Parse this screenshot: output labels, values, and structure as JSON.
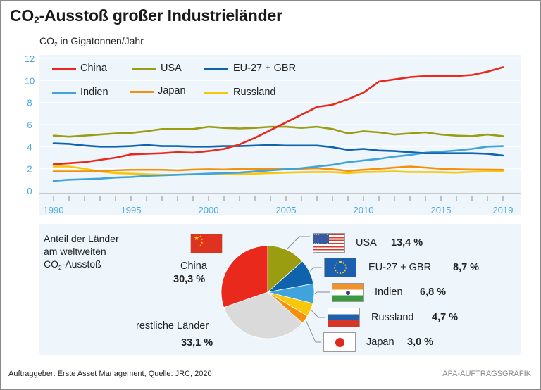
{
  "title": {
    "main": "CO",
    "sub": "2",
    "rest": "-Ausstoß großer Industrieländer"
  },
  "unit_label": {
    "pre": "CO",
    "sub": "2",
    "rest": " in Gigatonnen/Jahr"
  },
  "colors": {
    "China": "#e8291c",
    "USA": "#9a9d10",
    "EU-27 + GBR": "#0f63ad",
    "Indien": "#3fa3dd",
    "Japan": "#f4900e",
    "Russland": "#f7c80a",
    "restliche Länder": "#dadada",
    "axis_text": "#4aa6dc",
    "panel_bg": "#eef6fc"
  },
  "chart_data": [
    {
      "type": "line",
      "title": "CO2-Ausstoß großer Industrieländer",
      "ylabel": "CO2 in Gigatonnen/Jahr",
      "xlabel": "",
      "ylim": [
        0,
        12
      ],
      "yticks": [
        0,
        2,
        4,
        6,
        8,
        10,
        12
      ],
      "xlim": [
        1990,
        2019
      ],
      "xtick_labels": [
        "1990",
        "1995",
        "2000",
        "2005",
        "2010",
        "2015",
        "2019"
      ],
      "grid": true,
      "legend_position": "top-left",
      "x": [
        1990,
        1991,
        1992,
        1993,
        1994,
        1995,
        1996,
        1997,
        1998,
        1999,
        2000,
        2001,
        2002,
        2003,
        2004,
        2005,
        2006,
        2007,
        2008,
        2009,
        2010,
        2011,
        2012,
        2013,
        2014,
        2015,
        2016,
        2017,
        2018,
        2019
      ],
      "series": [
        {
          "name": "China",
          "values": [
            2.4,
            2.5,
            2.6,
            2.8,
            3.0,
            3.3,
            3.35,
            3.4,
            3.5,
            3.45,
            3.6,
            3.8,
            4.2,
            4.8,
            5.5,
            6.2,
            6.9,
            7.6,
            7.8,
            8.3,
            8.9,
            9.9,
            10.1,
            10.3,
            10.4,
            10.4,
            10.4,
            10.5,
            10.8,
            11.2
          ]
        },
        {
          "name": "USA",
          "values": [
            5.0,
            4.9,
            5.0,
            5.1,
            5.2,
            5.25,
            5.4,
            5.6,
            5.6,
            5.6,
            5.8,
            5.7,
            5.65,
            5.7,
            5.8,
            5.8,
            5.7,
            5.8,
            5.6,
            5.2,
            5.4,
            5.3,
            5.1,
            5.2,
            5.3,
            5.1,
            5.0,
            4.95,
            5.1,
            4.95
          ]
        },
        {
          "name": "EU-27 + GBR",
          "values": [
            4.3,
            4.25,
            4.1,
            4.0,
            4.0,
            4.05,
            4.15,
            4.05,
            4.05,
            4.0,
            4.0,
            4.05,
            4.05,
            4.1,
            4.15,
            4.1,
            4.1,
            4.1,
            3.95,
            3.7,
            3.8,
            3.65,
            3.6,
            3.5,
            3.4,
            3.4,
            3.4,
            3.4,
            3.35,
            3.2
          ]
        },
        {
          "name": "Indien",
          "values": [
            0.9,
            1.0,
            1.05,
            1.1,
            1.2,
            1.25,
            1.35,
            1.4,
            1.45,
            1.5,
            1.55,
            1.6,
            1.65,
            1.75,
            1.85,
            1.95,
            2.05,
            2.2,
            2.35,
            2.6,
            2.75,
            2.9,
            3.1,
            3.25,
            3.45,
            3.55,
            3.65,
            3.8,
            4.0,
            4.05
          ]
        },
        {
          "name": "Japan",
          "values": [
            1.75,
            1.75,
            1.75,
            1.78,
            1.85,
            1.9,
            1.9,
            1.9,
            1.85,
            1.92,
            1.95,
            1.93,
            1.97,
            2.0,
            2.0,
            2.0,
            2.0,
            2.05,
            1.95,
            1.8,
            1.9,
            2.0,
            2.1,
            2.2,
            2.1,
            2.0,
            1.95,
            1.93,
            1.92,
            1.9
          ]
        },
        {
          "name": "Russland",
          "values": [
            2.2,
            2.2,
            2.0,
            1.75,
            1.6,
            1.55,
            1.5,
            1.45,
            1.45,
            1.48,
            1.5,
            1.5,
            1.52,
            1.55,
            1.6,
            1.65,
            1.68,
            1.7,
            1.7,
            1.6,
            1.7,
            1.72,
            1.75,
            1.7,
            1.7,
            1.68,
            1.65,
            1.72,
            1.75,
            1.75
          ]
        }
      ]
    },
    {
      "type": "pie",
      "title": "Anteil der Länder am weltweiten CO2-Ausstoß",
      "slices": [
        {
          "name": "USA",
          "value": 13.4,
          "label": "13,4 %"
        },
        {
          "name": "EU-27 + GBR",
          "value": 8.7,
          "label": "8,7 %"
        },
        {
          "name": "Indien",
          "value": 6.8,
          "label": "6,8 %"
        },
        {
          "name": "Russland",
          "value": 4.7,
          "label": "4,7 %"
        },
        {
          "name": "Japan",
          "value": 3.0,
          "label": "3,0 %"
        },
        {
          "name": "restliche Länder",
          "value": 33.1,
          "label": "33,1 %"
        },
        {
          "name": "China",
          "value": 30.3,
          "label": "30,3 %"
        }
      ]
    }
  ],
  "pie_heading": {
    "line1": "Anteil der Länder",
    "line2": "am  weltweiten",
    "line3_pre": "CO",
    "line3_sub": "2",
    "line3_rest": "-Ausstoß"
  },
  "pie_labels": {
    "China": {
      "name": "China",
      "value": "30,3 %"
    },
    "restliche": {
      "name": "restliche Länder",
      "value": "33,1 %"
    },
    "USA": {
      "name": "USA",
      "value": "13,4 %"
    },
    "EU": {
      "name": "EU-27 + GBR",
      "value": "8,7 %"
    },
    "Indien": {
      "name": "Indien",
      "value": "6,8 %"
    },
    "Russland": {
      "name": "Russland",
      "value": "4,7 %"
    },
    "Japan": {
      "name": "Japan",
      "value": "3,0 %"
    }
  },
  "legend": [
    "China",
    "USA",
    "EU-27 + GBR",
    "Indien",
    "Japan",
    "Russland"
  ],
  "footer": {
    "source": "Auftraggeber: Erste Asset Management, Quelle: JRC, 2020",
    "credit": "APA-AUFTRAGSGRAFIK"
  }
}
